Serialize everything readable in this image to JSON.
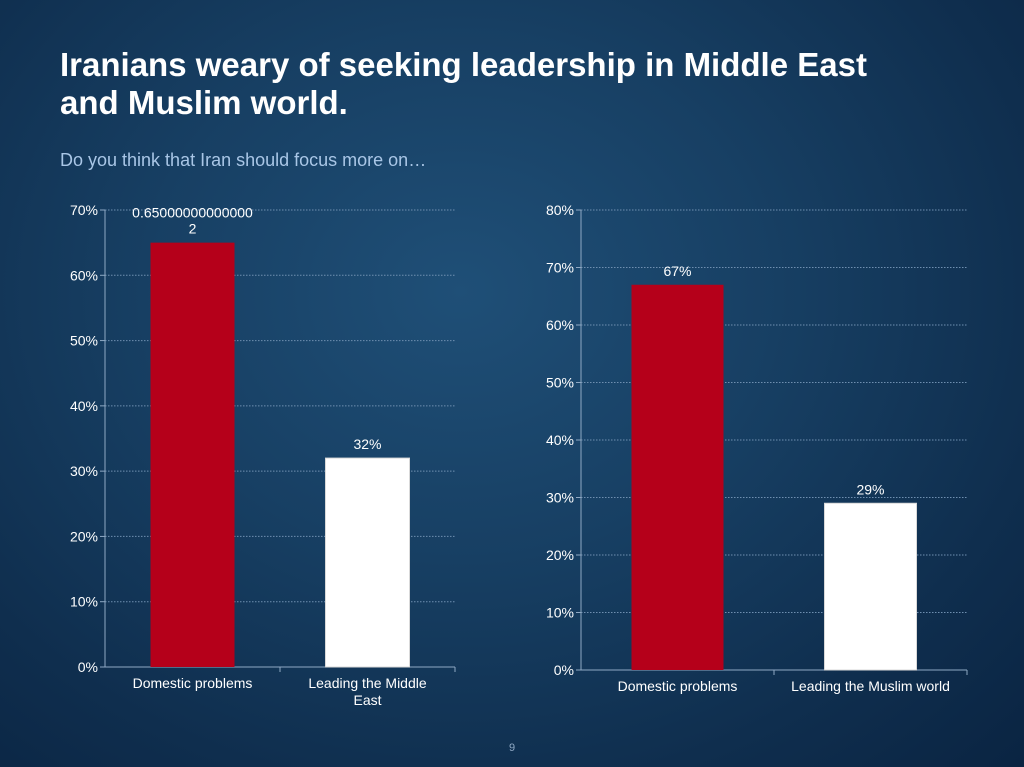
{
  "slide": {
    "title_line1": "Iranians weary of seeking leadership in Middle East",
    "title_line2": "and Muslim world.",
    "subtitle": "Do you think that Iran should focus more on…",
    "page_number": "9"
  },
  "colors": {
    "red_bar": "#b5001a",
    "white_bar": "#ffffff",
    "gridline": "#6f8fb0",
    "axis_text": "#ffffff"
  },
  "chart_data": [
    {
      "type": "bar",
      "categories": [
        "Domestic problems",
        "Leading the Middle East"
      ],
      "category_lines": [
        [
          "Domestic problems"
        ],
        [
          "Leading the Middle",
          "East"
        ]
      ],
      "values": [
        0.65,
        0.32
      ],
      "data_labels": [
        [
          "0.65000000000000",
          "2"
        ],
        [
          "32%"
        ]
      ],
      "bar_colors": [
        "#b5001a",
        "#ffffff"
      ],
      "ylim": [
        0,
        0.7
      ],
      "yticks": [
        0,
        0.1,
        0.2,
        0.3,
        0.4,
        0.5,
        0.6,
        0.7
      ],
      "ytick_labels": [
        "0%",
        "10%",
        "20%",
        "30%",
        "40%",
        "50%",
        "60%",
        "70%"
      ],
      "grid": true
    },
    {
      "type": "bar",
      "categories": [
        "Domestic problems",
        "Leading the Muslim world"
      ],
      "category_lines": [
        [
          "Domestic problems"
        ],
        [
          "Leading the Muslim world"
        ]
      ],
      "values": [
        0.67,
        0.29
      ],
      "data_labels": [
        [
          "67%"
        ],
        [
          "29%"
        ]
      ],
      "bar_colors": [
        "#b5001a",
        "#ffffff"
      ],
      "ylim": [
        0,
        0.8
      ],
      "yticks": [
        0,
        0.1,
        0.2,
        0.3,
        0.4,
        0.5,
        0.6,
        0.7,
        0.8
      ],
      "ytick_labels": [
        "0%",
        "10%",
        "20%",
        "30%",
        "40%",
        "50%",
        "60%",
        "70%",
        "80%"
      ],
      "grid": true
    }
  ]
}
